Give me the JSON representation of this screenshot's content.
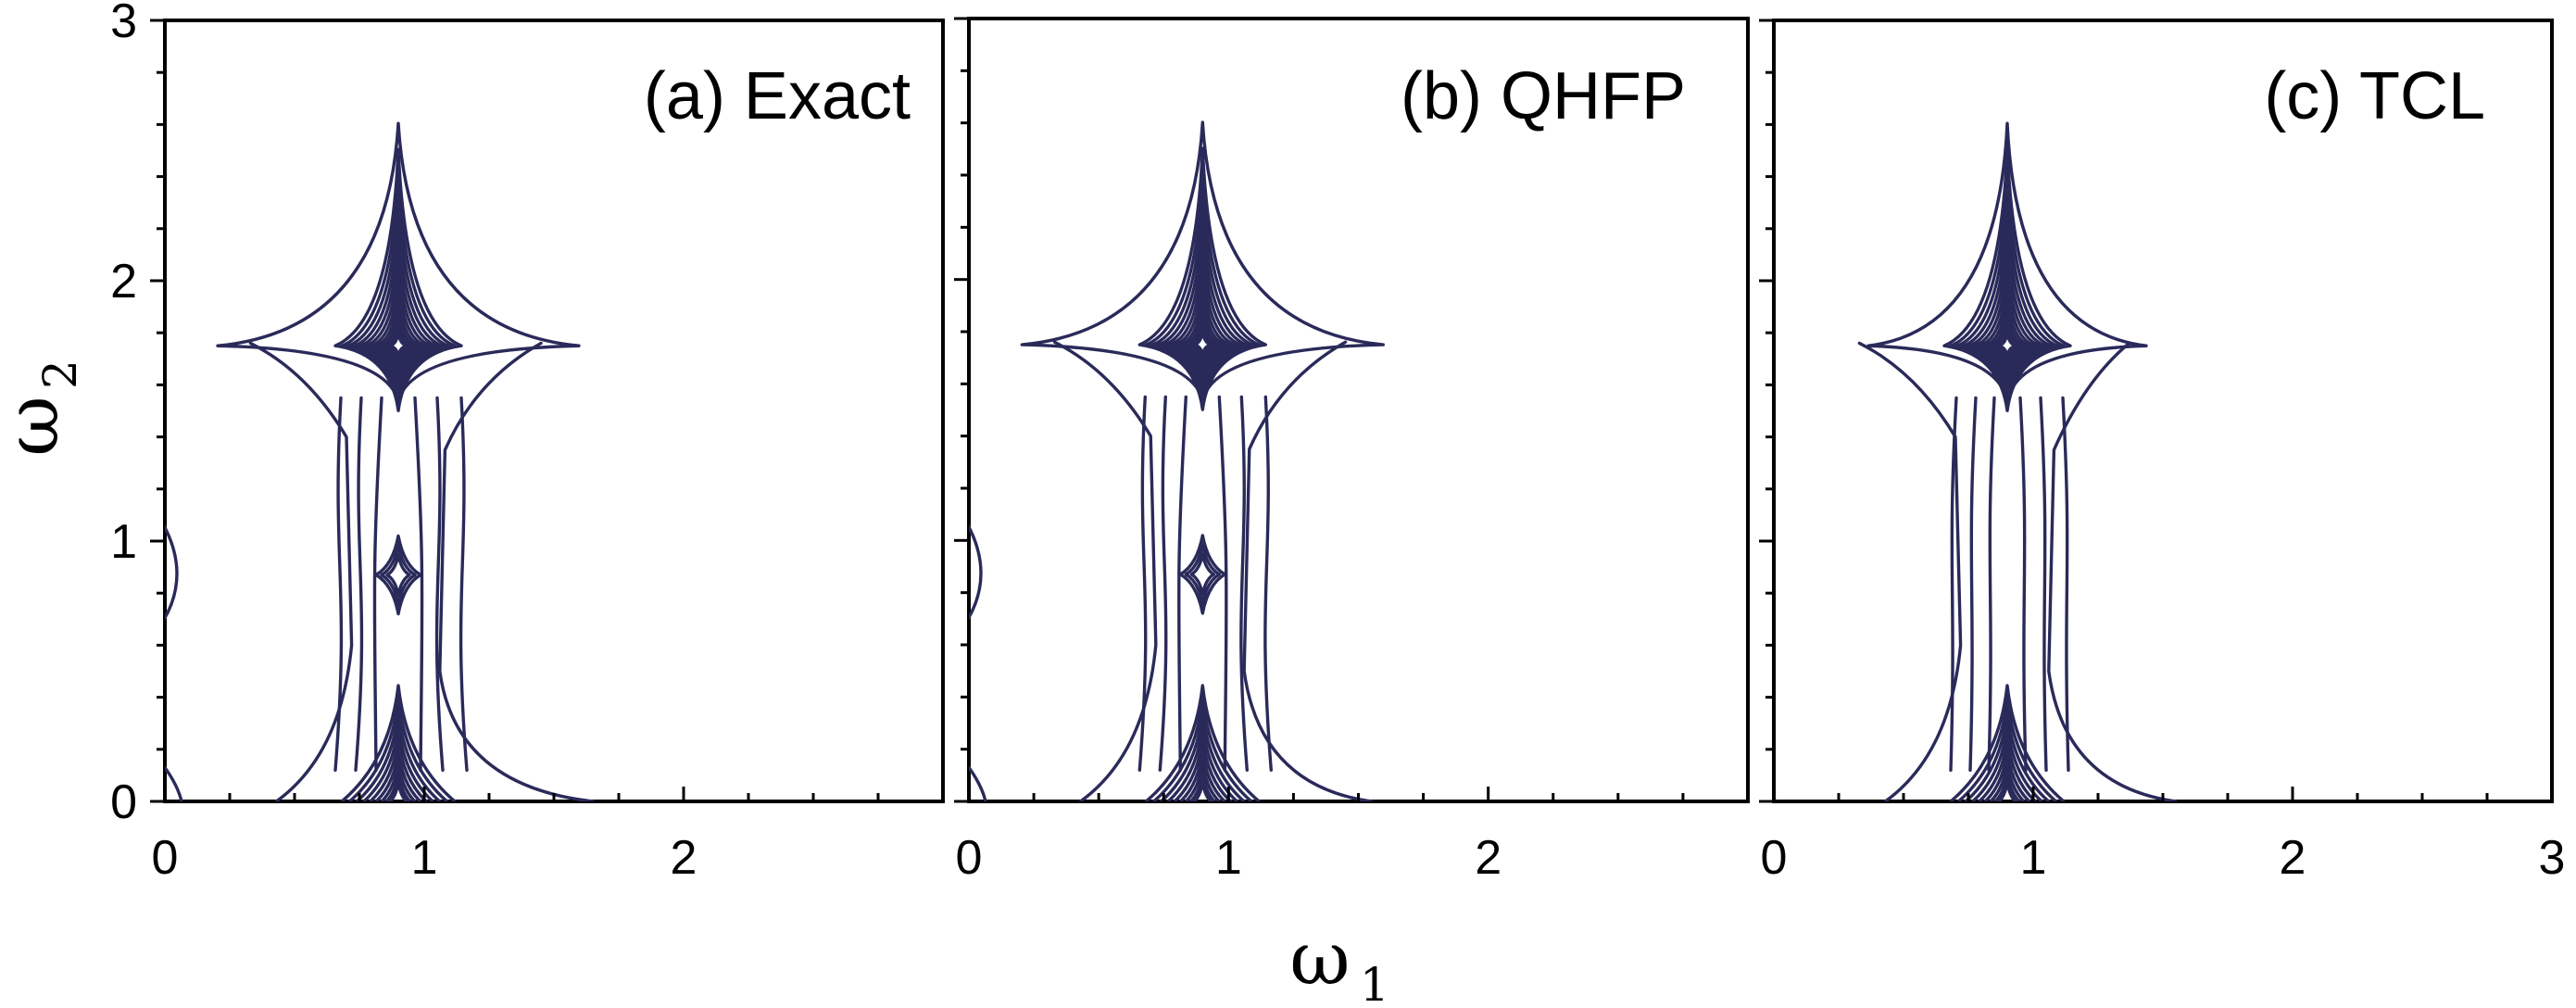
{
  "chart_data": [
    {
      "type": "contour",
      "title": "(a) Exact",
      "xlim": [
        0,
        3
      ],
      "ylim": [
        0,
        3
      ],
      "xticks": [
        "0",
        "1",
        "2"
      ],
      "yticks": [
        "0",
        "1",
        "2",
        "3"
      ],
      "peaks": [
        {
          "w1": 0.9,
          "w2": 1.75,
          "levels": 12
        },
        {
          "w1": 0.9,
          "w2": 0.87,
          "levels": 3
        },
        {
          "w1": 0.9,
          "w2": 0.05,
          "levels": 9
        },
        {
          "w1": 0.0,
          "w2": 0.87,
          "levels": 1
        }
      ]
    },
    {
      "type": "contour",
      "title": "(b) QHFP",
      "xlim": [
        0,
        3
      ],
      "ylim": [
        0,
        3
      ],
      "xticks": [
        "0",
        "1",
        "2"
      ],
      "yticks": [],
      "peaks": [
        {
          "w1": 0.9,
          "w2": 1.75,
          "levels": 12
        },
        {
          "w1": 0.9,
          "w2": 0.87,
          "levels": 3
        },
        {
          "w1": 0.9,
          "w2": 0.05,
          "levels": 9
        },
        {
          "w1": 0.0,
          "w2": 0.87,
          "levels": 1
        }
      ]
    },
    {
      "type": "contour",
      "title": "(c) TCL",
      "xlim": [
        0,
        3
      ],
      "ylim": [
        0,
        3
      ],
      "xticks": [
        "0",
        "1",
        "2",
        "3"
      ],
      "yticks": [],
      "peaks": [
        {
          "w1": 0.9,
          "w2": 1.75,
          "levels": 12
        },
        {
          "w1": 0.9,
          "w2": 0.05,
          "levels": 9
        }
      ]
    }
  ],
  "axes": {
    "xlabel_symbol": "ω",
    "xlabel_sub": "1",
    "ylabel_symbol": "ω",
    "ylabel_sub": "2"
  },
  "colors": {
    "contour": "#2a2a5a",
    "frame": "#000000"
  }
}
